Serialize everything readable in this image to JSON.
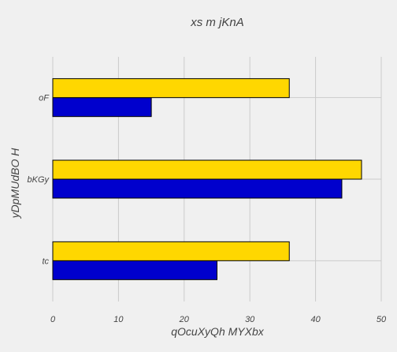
{
  "chart_data": {
    "type": "bar",
    "orientation": "horizontal",
    "title": "xs m jKnA",
    "xlabel": "qOcuXyQh MYXbx",
    "ylabel": "yDpMUdBO H",
    "categories": [
      "tc",
      "bKGy",
      "oF"
    ],
    "series": [
      {
        "color": "#0000cd",
        "values": [
          25,
          44,
          15
        ]
      },
      {
        "color": "#ffd700",
        "values": [
          36,
          47,
          36
        ]
      }
    ],
    "xlim": [
      0,
      50
    ],
    "xticks": [
      "0",
      "10",
      "20",
      "30",
      "40",
      "50"
    ],
    "grid": true,
    "bar_edge_color": "#000000"
  }
}
